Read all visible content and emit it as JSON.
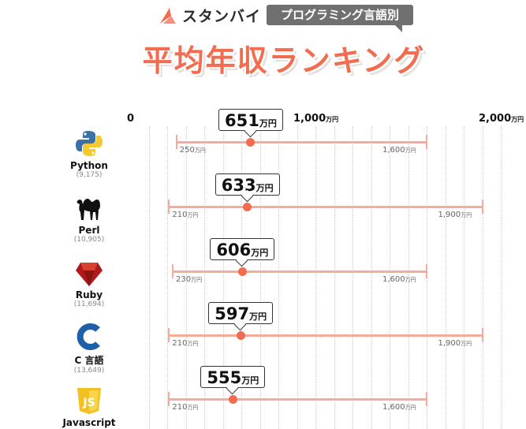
{
  "header": {
    "brand_name": "スタンバイ",
    "tag": "プログラミング言語別",
    "title": "平均年収ランキング"
  },
  "colors": {
    "accent": "#f26c4f",
    "range": "#f5ab97",
    "tag_bg": "#707070"
  },
  "chart_data": {
    "type": "range",
    "x_unit": "万円",
    "xlim": [
      0,
      2000
    ],
    "x_ticks": [
      {
        "value": 0,
        "label": "0",
        "unit": ""
      },
      {
        "value": 1000,
        "label": "1,000",
        "unit": "万円"
      },
      {
        "value": 2000,
        "label": "2,000",
        "unit": "万円"
      }
    ],
    "grid": true,
    "rows": [
      {
        "name": "Python",
        "count": "(9,175)",
        "icon": "python-logo-icon",
        "average": 651,
        "min": 250,
        "max": 1600
      },
      {
        "name": "Perl",
        "count": "(10,905)",
        "icon": "camel-icon",
        "average": 633,
        "min": 210,
        "max": 1900
      },
      {
        "name": "Ruby",
        "count": "(11,694)",
        "icon": "ruby-gem-icon",
        "average": 606,
        "min": 230,
        "max": 1600
      },
      {
        "name": "C 言語",
        "count": "(13,649)",
        "icon": "c-letter-icon",
        "average": 597,
        "min": 210,
        "max": 1900
      },
      {
        "name": "Javascript",
        "count": "",
        "icon": "js-shield-icon",
        "average": 555,
        "min": 210,
        "max": 1600
      }
    ]
  }
}
